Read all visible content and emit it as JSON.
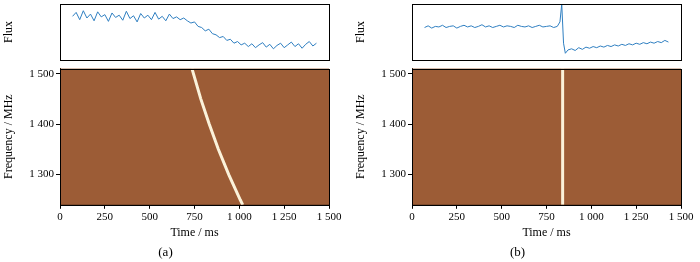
{
  "chart_data": [
    {
      "type": "line",
      "ylabel": "Flux",
      "color": "#2f7fc1",
      "grid": false,
      "tick_labels": false,
      "xlim": [
        0,
        1500
      ],
      "ylim": [
        0,
        1
      ],
      "x": [
        70,
        90,
        110,
        130,
        150,
        170,
        190,
        210,
        230,
        250,
        270,
        290,
        310,
        330,
        350,
        370,
        390,
        410,
        430,
        450,
        470,
        490,
        510,
        530,
        550,
        570,
        590,
        610,
        630,
        650,
        670,
        690,
        710,
        730,
        750,
        770,
        790,
        810,
        830,
        850,
        870,
        890,
        910,
        930,
        950,
        970,
        990,
        1010,
        1030,
        1050,
        1070,
        1090,
        1110,
        1130,
        1150,
        1170,
        1190,
        1210,
        1230,
        1250,
        1270,
        1290,
        1310,
        1330,
        1350,
        1370,
        1390,
        1410,
        1430
      ],
      "values": [
        0.78,
        0.85,
        0.72,
        0.88,
        0.75,
        0.82,
        0.7,
        0.86,
        0.77,
        0.81,
        0.69,
        0.84,
        0.76,
        0.8,
        0.71,
        0.87,
        0.74,
        0.79,
        0.68,
        0.83,
        0.75,
        0.8,
        0.72,
        0.85,
        0.73,
        0.78,
        0.7,
        0.82,
        0.74,
        0.77,
        0.72,
        0.75,
        0.7,
        0.66,
        0.68,
        0.6,
        0.58,
        0.52,
        0.55,
        0.47,
        0.45,
        0.4,
        0.42,
        0.35,
        0.37,
        0.3,
        0.33,
        0.27,
        0.3,
        0.24,
        0.29,
        0.22,
        0.27,
        0.31,
        0.23,
        0.28,
        0.2,
        0.26,
        0.3,
        0.22,
        0.27,
        0.32,
        0.24,
        0.29,
        0.21,
        0.28,
        0.33,
        0.25,
        0.3
      ]
    },
    {
      "type": "spectrum",
      "title": "(a)",
      "xlabel": "Time / ms",
      "ylabel": "Frequency / MHz",
      "color": "#fbf2da",
      "grid": false,
      "xlim": [
        0,
        1500
      ],
      "ylim": [
        1240,
        1510
      ],
      "xticks": [
        0,
        250,
        500,
        750,
        {
          "value": 1000,
          "label": "1 000"
        },
        {
          "value": 1250,
          "label": "1 250"
        },
        {
          "value": 1500,
          "label": "1 500"
        }
      ],
      "yticks": [
        {
          "value": 1300,
          "label": "1 300"
        },
        {
          "value": 1400,
          "label": "1 400"
        },
        {
          "value": 1500,
          "label": "1 500"
        }
      ],
      "x": [
        736,
        744,
        785,
        832,
        883,
        941,
        1005,
        1019
      ],
      "values": [
        1510,
        1500,
        1450,
        1400,
        1350,
        1300,
        1250,
        1240
      ]
    },
    {
      "type": "line",
      "ylabel": "Flux",
      "color": "#2f7fc1",
      "grid": false,
      "tick_labels": false,
      "xlim": [
        0,
        1500
      ],
      "ylim": [
        0,
        1
      ],
      "x": [
        70,
        90,
        110,
        130,
        150,
        170,
        190,
        210,
        230,
        250,
        270,
        290,
        310,
        330,
        350,
        370,
        390,
        410,
        430,
        450,
        470,
        490,
        510,
        530,
        550,
        570,
        590,
        610,
        630,
        650,
        670,
        690,
        710,
        730,
        750,
        770,
        790,
        810,
        825,
        835,
        845,
        855,
        870,
        890,
        910,
        930,
        950,
        970,
        990,
        1010,
        1030,
        1050,
        1070,
        1090,
        1110,
        1130,
        1150,
        1170,
        1190,
        1210,
        1230,
        1250,
        1270,
        1290,
        1310,
        1330,
        1350,
        1370,
        1390,
        1410,
        1430
      ],
      "values": [
        0.58,
        0.61,
        0.57,
        0.6,
        0.59,
        0.62,
        0.58,
        0.6,
        0.61,
        0.57,
        0.6,
        0.62,
        0.59,
        0.61,
        0.58,
        0.6,
        0.63,
        0.59,
        0.61,
        0.58,
        0.6,
        0.62,
        0.59,
        0.61,
        0.6,
        0.58,
        0.62,
        0.6,
        0.59,
        0.61,
        0.58,
        0.6,
        0.62,
        0.59,
        0.6,
        0.61,
        0.58,
        0.6,
        0.68,
        1.0,
        0.3,
        0.12,
        0.18,
        0.2,
        0.17,
        0.22,
        0.19,
        0.23,
        0.21,
        0.24,
        0.22,
        0.25,
        0.23,
        0.26,
        0.24,
        0.27,
        0.25,
        0.28,
        0.26,
        0.29,
        0.27,
        0.3,
        0.28,
        0.31,
        0.29,
        0.32,
        0.3,
        0.33,
        0.31,
        0.35,
        0.32
      ]
    },
    {
      "type": "spectrum",
      "title": "(b)",
      "xlabel": "Time / ms",
      "ylabel": "Frequency / MHz",
      "color": "#fbf2da",
      "grid": false,
      "xlim": [
        0,
        1500
      ],
      "ylim": [
        1240,
        1510
      ],
      "xticks": [
        0,
        250,
        500,
        750,
        {
          "value": 1000,
          "label": "1 000"
        },
        {
          "value": 1250,
          "label": "1 250"
        },
        {
          "value": 1500,
          "label": "1 500"
        }
      ],
      "yticks": [
        {
          "value": 1300,
          "label": "1 300"
        },
        {
          "value": 1400,
          "label": "1 400"
        },
        {
          "value": 1500,
          "label": "1 500"
        }
      ],
      "x": [
        840,
        840
      ],
      "values": [
        1510,
        1240
      ]
    }
  ]
}
